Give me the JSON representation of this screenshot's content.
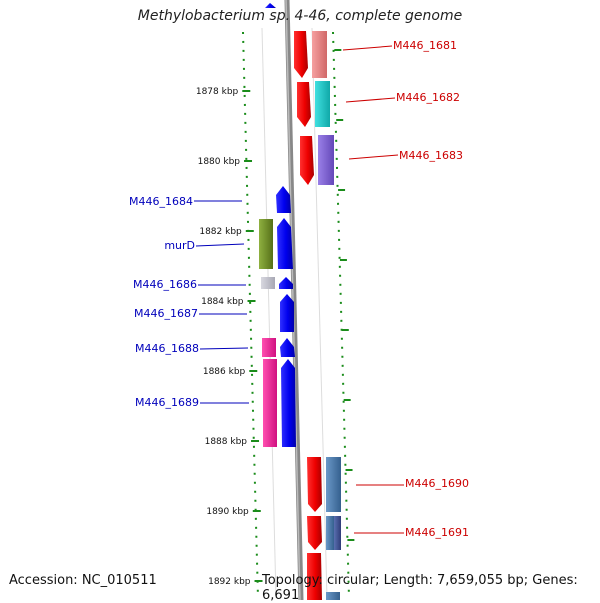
{
  "title": "Methylobacterium sp. 4-46, complete genome",
  "footer": {
    "accession": "Accession: NC_010511",
    "summary": "Topology: circular; Length: 7,659,055 bp; Genes: 6,691"
  },
  "colors": {
    "label_forward": "#0000bb",
    "label_reverse": "#cc0000",
    "tick": "#1a8c1a",
    "backbone": "#888888"
  },
  "ticks": [
    {
      "label": "1878 kbp"
    },
    {
      "label": "1880 kbp"
    },
    {
      "label": "1882 kbp"
    },
    {
      "label": "1884 kbp"
    },
    {
      "label": "1886 kbp"
    },
    {
      "label": "1888 kbp"
    },
    {
      "label": "1890 kbp"
    },
    {
      "label": "1892 kbp"
    }
  ],
  "genes_reverse": [
    {
      "label": "M446_1681",
      "cog_color": "#e07878"
    },
    {
      "label": "M446_1682",
      "cog_color": "#20c0c0"
    },
    {
      "label": "M446_1683",
      "cog_color": "#7a5ccc"
    },
    {
      "label": "M446_1690",
      "cog_color": "#4a78a8"
    },
    {
      "label": "M446_1691",
      "cog_color": "#4a78a8"
    }
  ],
  "genes_forward": [
    {
      "label": "M446_1684",
      "cog_color": ""
    },
    {
      "label": "murD",
      "cog_color": "#6b8e23"
    },
    {
      "label": "M446_1686",
      "cog_color": "#c0c0c8"
    },
    {
      "label": "M446_1687",
      "cog_color": ""
    },
    {
      "label": "M446_1688",
      "cog_color": "#ff1493"
    },
    {
      "label": "M446_1689",
      "cog_color": "#ff1493"
    }
  ]
}
